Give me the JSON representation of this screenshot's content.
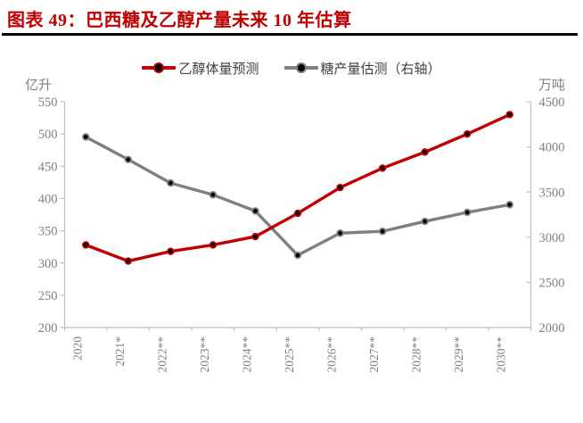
{
  "header": {
    "figure_label": "图表 49",
    "title": "图表 49：巴西糖及乙醇产量未来 10 年估算"
  },
  "chart_data": {
    "type": "line",
    "title": "图表 49：巴西糖及乙醇产量未来 10 年估算",
    "categories": [
      "2020",
      "2021*",
      "2022**",
      "2023**",
      "2024**",
      "2025**",
      "2026**",
      "2027**",
      "2028**",
      "2029**",
      "2030**"
    ],
    "series": [
      {
        "name": "乙醇体量预测",
        "axis": "left",
        "color": "#C00000",
        "marker": "black-dot",
        "values": [
          328,
          303,
          318,
          328,
          341,
          377,
          417,
          447,
          472,
          500,
          530
        ]
      },
      {
        "name": "糖产量估测（右轴）",
        "axis": "right",
        "color": "#7F7F7F",
        "marker": "black-dot",
        "values": [
          4110,
          3860,
          3600,
          3470,
          3290,
          2800,
          3045,
          3065,
          3175,
          3275,
          3360
        ]
      }
    ],
    "left_axis": {
      "unit": "亿升",
      "min": 200,
      "max": 550,
      "step": 50
    },
    "right_axis": {
      "unit": "万吨",
      "min": 2000,
      "max": 4500,
      "step": 500
    },
    "legend_position": "top",
    "grid": false
  },
  "style": {
    "title_color": "#C00000",
    "axis_line_color": "#BFBFBF",
    "tick_label_color": "#808080",
    "legend_text_color": "#404040",
    "background": "#FFFFFF"
  }
}
